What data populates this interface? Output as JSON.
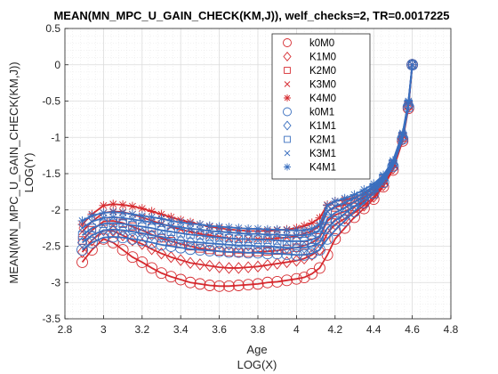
{
  "chart_data": {
    "type": "line",
    "title": "MEAN(MN_MPC_U_GAIN_CHECK(KM,J)), welf_checks=2, TR=0.0017225",
    "xlabel": [
      "Age",
      "LOG(X)"
    ],
    "ylabel": [
      "MEAN(MN_MPC_U_GAIN_CHECK(KM,J))",
      "LOG(Y)"
    ],
    "xlim": [
      2.8,
      4.8
    ],
    "ylim": [
      -3.5,
      0.5
    ],
    "xticks": [
      "2.8",
      "3",
      "3.2",
      "3.4",
      "3.6",
      "3.8",
      "4",
      "4.2",
      "4.4",
      "4.6",
      "4.8"
    ],
    "yticks": [
      "0.5",
      "0",
      "-0.5",
      "-1",
      "-1.5",
      "-2",
      "-2.5",
      "-3",
      "-3.5"
    ],
    "grid": true,
    "minor_grid": true,
    "legend_position": "top-right",
    "colors": {
      "M0": "#d62a2f",
      "M1": "#3a6fbf"
    },
    "series": [
      {
        "name": "k0M0",
        "marker": "circle",
        "color": "#d62a2f",
        "x": [
          2.89,
          2.94,
          3.0,
          3.05,
          3.1,
          3.15,
          3.2,
          3.25,
          3.3,
          3.35,
          3.4,
          3.45,
          3.5,
          3.55,
          3.6,
          3.65,
          3.7,
          3.75,
          3.8,
          3.85,
          3.9,
          3.95,
          4.0,
          4.04,
          4.08,
          4.12,
          4.16,
          4.2,
          4.25,
          4.3,
          4.35,
          4.4,
          4.45,
          4.5,
          4.55,
          4.58,
          4.6
        ],
        "y": [
          -2.72,
          -2.55,
          -2.4,
          -2.45,
          -2.55,
          -2.65,
          -2.72,
          -2.8,
          -2.87,
          -2.92,
          -2.96,
          -3.0,
          -3.02,
          -3.04,
          -3.05,
          -3.05,
          -3.04,
          -3.03,
          -3.02,
          -3.0,
          -2.99,
          -2.97,
          -2.95,
          -2.93,
          -2.88,
          -2.8,
          -2.62,
          -2.4,
          -2.25,
          -2.1,
          -1.98,
          -1.85,
          -1.68,
          -1.45,
          -1.05,
          -0.6,
          0.0
        ]
      },
      {
        "name": "K1M0",
        "marker": "diamond",
        "color": "#d62a2f",
        "x": [
          2.89,
          2.94,
          3.0,
          3.05,
          3.1,
          3.15,
          3.2,
          3.25,
          3.3,
          3.35,
          3.4,
          3.45,
          3.5,
          3.55,
          3.6,
          3.65,
          3.7,
          3.75,
          3.8,
          3.85,
          3.9,
          3.95,
          4.0,
          4.04,
          4.08,
          4.12,
          4.16,
          4.2,
          4.25,
          4.3,
          4.35,
          4.4,
          4.45,
          4.5,
          4.55,
          4.58,
          4.6
        ],
        "y": [
          -2.58,
          -2.42,
          -2.28,
          -2.29,
          -2.35,
          -2.42,
          -2.47,
          -2.54,
          -2.6,
          -2.65,
          -2.69,
          -2.73,
          -2.75,
          -2.77,
          -2.79,
          -2.8,
          -2.8,
          -2.79,
          -2.78,
          -2.76,
          -2.74,
          -2.72,
          -2.7,
          -2.67,
          -2.62,
          -2.55,
          -2.32,
          -2.2,
          -2.12,
          -2.04,
          -1.94,
          -1.82,
          -1.66,
          -1.43,
          -1.03,
          -0.58,
          0.0
        ]
      },
      {
        "name": "K2M0",
        "marker": "square",
        "color": "#d62a2f",
        "x": [
          2.89,
          2.94,
          3.0,
          3.05,
          3.1,
          3.15,
          3.2,
          3.25,
          3.3,
          3.35,
          3.4,
          3.45,
          3.5,
          3.55,
          3.6,
          3.65,
          3.7,
          3.75,
          3.8,
          3.85,
          3.9,
          3.95,
          4.0,
          4.04,
          4.08,
          4.12,
          4.16,
          4.2,
          4.25,
          4.3,
          4.35,
          4.4,
          4.45,
          4.5,
          4.55,
          4.58,
          4.6
        ],
        "y": [
          -2.42,
          -2.28,
          -2.16,
          -2.15,
          -2.18,
          -2.23,
          -2.28,
          -2.34,
          -2.39,
          -2.43,
          -2.47,
          -2.5,
          -2.53,
          -2.55,
          -2.57,
          -2.58,
          -2.59,
          -2.59,
          -2.58,
          -2.57,
          -2.56,
          -2.54,
          -2.52,
          -2.49,
          -2.45,
          -2.38,
          -2.15,
          -2.07,
          -2.02,
          -1.96,
          -1.88,
          -1.78,
          -1.63,
          -1.4,
          -1.0,
          -0.56,
          0.0
        ]
      },
      {
        "name": "K3M0",
        "marker": "x",
        "color": "#d62a2f",
        "x": [
          2.89,
          2.94,
          3.0,
          3.05,
          3.1,
          3.15,
          3.2,
          3.25,
          3.3,
          3.35,
          3.4,
          3.45,
          3.5,
          3.55,
          3.6,
          3.65,
          3.7,
          3.75,
          3.8,
          3.85,
          3.9,
          3.95,
          4.0,
          4.04,
          4.08,
          4.12,
          4.16,
          4.2,
          4.25,
          4.3,
          4.35,
          4.4,
          4.45,
          4.5,
          4.55,
          4.58,
          4.6
        ],
        "y": [
          -2.3,
          -2.16,
          -2.04,
          -2.02,
          -2.03,
          -2.06,
          -2.1,
          -2.15,
          -2.19,
          -2.23,
          -2.27,
          -2.3,
          -2.33,
          -2.35,
          -2.37,
          -2.39,
          -2.4,
          -2.4,
          -2.4,
          -2.4,
          -2.39,
          -2.38,
          -2.36,
          -2.33,
          -2.29,
          -2.22,
          -2.02,
          -1.96,
          -1.93,
          -1.89,
          -1.83,
          -1.74,
          -1.6,
          -1.38,
          -0.98,
          -0.54,
          0.0
        ]
      },
      {
        "name": "K4M0",
        "marker": "star",
        "color": "#d62a2f",
        "x": [
          2.89,
          2.94,
          3.0,
          3.05,
          3.1,
          3.15,
          3.2,
          3.25,
          3.3,
          3.35,
          3.4,
          3.45,
          3.5,
          3.55,
          3.6,
          3.65,
          3.7,
          3.75,
          3.8,
          3.85,
          3.9,
          3.95,
          4.0,
          4.04,
          4.08,
          4.12,
          4.16,
          4.2,
          4.25,
          4.3,
          4.35,
          4.4,
          4.45,
          4.5,
          4.55,
          4.58,
          4.6
        ],
        "y": [
          -2.2,
          -2.06,
          -1.94,
          -1.92,
          -1.93,
          -1.95,
          -1.98,
          -2.02,
          -2.06,
          -2.1,
          -2.14,
          -2.17,
          -2.2,
          -2.23,
          -2.25,
          -2.27,
          -2.28,
          -2.29,
          -2.29,
          -2.29,
          -2.28,
          -2.27,
          -2.25,
          -2.22,
          -2.18,
          -2.11,
          -1.93,
          -1.88,
          -1.86,
          -1.83,
          -1.78,
          -1.7,
          -1.57,
          -1.36,
          -0.96,
          -0.52,
          0.0
        ]
      },
      {
        "name": "k0M1",
        "marker": "circle",
        "color": "#3a6fbf",
        "x": [
          2.89,
          2.94,
          3.0,
          3.05,
          3.1,
          3.15,
          3.2,
          3.25,
          3.3,
          3.35,
          3.4,
          3.45,
          3.5,
          3.55,
          3.6,
          3.65,
          3.7,
          3.75,
          3.8,
          3.85,
          3.9,
          3.95,
          4.0,
          4.04,
          4.08,
          4.12,
          4.16,
          4.2,
          4.25,
          4.3,
          4.35,
          4.4,
          4.45,
          4.5,
          4.55,
          4.58,
          4.6
        ],
        "y": [
          -2.55,
          -2.45,
          -2.38,
          -2.37,
          -2.38,
          -2.4,
          -2.42,
          -2.45,
          -2.48,
          -2.5,
          -2.52,
          -2.54,
          -2.55,
          -2.56,
          -2.57,
          -2.58,
          -2.58,
          -2.59,
          -2.59,
          -2.6,
          -2.6,
          -2.61,
          -2.62,
          -2.62,
          -2.6,
          -2.55,
          -2.4,
          -2.28,
          -2.15,
          -2.02,
          -1.9,
          -1.77,
          -1.62,
          -1.4,
          -1.02,
          -0.58,
          0.0
        ]
      },
      {
        "name": "K1M1",
        "marker": "diamond",
        "color": "#3a6fbf",
        "x": [
          2.89,
          2.94,
          3.0,
          3.05,
          3.1,
          3.15,
          3.2,
          3.25,
          3.3,
          3.35,
          3.4,
          3.45,
          3.5,
          3.55,
          3.6,
          3.65,
          3.7,
          3.75,
          3.8,
          3.85,
          3.9,
          3.95,
          4.0,
          4.04,
          4.08,
          4.12,
          4.16,
          4.2,
          4.25,
          4.3,
          4.35,
          4.4,
          4.45,
          4.5,
          4.55,
          4.58,
          4.6
        ],
        "y": [
          -2.45,
          -2.35,
          -2.28,
          -2.27,
          -2.28,
          -2.3,
          -2.32,
          -2.35,
          -2.37,
          -2.4,
          -2.42,
          -2.44,
          -2.45,
          -2.46,
          -2.47,
          -2.48,
          -2.49,
          -2.49,
          -2.5,
          -2.5,
          -2.51,
          -2.52,
          -2.52,
          -2.52,
          -2.5,
          -2.45,
          -2.25,
          -2.15,
          -2.05,
          -1.95,
          -1.85,
          -1.73,
          -1.59,
          -1.38,
          -1.0,
          -0.56,
          0.0
        ]
      },
      {
        "name": "K2M1",
        "marker": "square",
        "color": "#3a6fbf",
        "x": [
          2.89,
          2.94,
          3.0,
          3.05,
          3.1,
          3.15,
          3.2,
          3.25,
          3.3,
          3.35,
          3.4,
          3.45,
          3.5,
          3.55,
          3.6,
          3.65,
          3.7,
          3.75,
          3.8,
          3.85,
          3.9,
          3.95,
          4.0,
          4.04,
          4.08,
          4.12,
          4.16,
          4.2,
          4.25,
          4.3,
          4.35,
          4.4,
          4.45,
          4.5,
          4.55,
          4.58,
          4.6
        ],
        "y": [
          -2.35,
          -2.25,
          -2.19,
          -2.18,
          -2.19,
          -2.21,
          -2.23,
          -2.25,
          -2.28,
          -2.3,
          -2.32,
          -2.34,
          -2.35,
          -2.37,
          -2.38,
          -2.39,
          -2.4,
          -2.4,
          -2.41,
          -2.41,
          -2.42,
          -2.43,
          -2.43,
          -2.43,
          -2.41,
          -2.36,
          -2.12,
          -2.04,
          -1.97,
          -1.89,
          -1.8,
          -1.7,
          -1.56,
          -1.36,
          -0.98,
          -0.54,
          0.0
        ]
      },
      {
        "name": "K3M1",
        "marker": "x",
        "color": "#3a6fbf",
        "x": [
          2.89,
          2.94,
          3.0,
          3.05,
          3.1,
          3.15,
          3.2,
          3.25,
          3.3,
          3.35,
          3.4,
          3.45,
          3.5,
          3.55,
          3.6,
          3.65,
          3.7,
          3.75,
          3.8,
          3.85,
          3.9,
          3.95,
          4.0,
          4.04,
          4.08,
          4.12,
          4.16,
          4.2,
          4.25,
          4.3,
          4.35,
          4.4,
          4.45,
          4.5,
          4.55,
          4.58,
          4.6
        ],
        "y": [
          -2.25,
          -2.16,
          -2.11,
          -2.1,
          -2.11,
          -2.13,
          -2.15,
          -2.17,
          -2.2,
          -2.22,
          -2.24,
          -2.26,
          -2.27,
          -2.29,
          -2.3,
          -2.31,
          -2.32,
          -2.33,
          -2.33,
          -2.34,
          -2.34,
          -2.35,
          -2.35,
          -2.35,
          -2.33,
          -2.28,
          -2.02,
          -1.95,
          -1.9,
          -1.84,
          -1.76,
          -1.67,
          -1.54,
          -1.34,
          -0.96,
          -0.52,
          0.0
        ]
      },
      {
        "name": "K4M1",
        "marker": "star",
        "color": "#3a6fbf",
        "x": [
          2.89,
          2.94,
          3.0,
          3.05,
          3.1,
          3.15,
          3.2,
          3.25,
          3.3,
          3.35,
          3.4,
          3.45,
          3.5,
          3.55,
          3.6,
          3.65,
          3.7,
          3.75,
          3.8,
          3.85,
          3.9,
          3.95,
          4.0,
          4.04,
          4.08,
          4.12,
          4.16,
          4.2,
          4.25,
          4.3,
          4.35,
          4.4,
          4.45,
          4.5,
          4.55,
          4.58,
          4.6
        ],
        "y": [
          -2.15,
          -2.08,
          -2.04,
          -2.03,
          -2.04,
          -2.06,
          -2.08,
          -2.1,
          -2.12,
          -2.15,
          -2.17,
          -2.19,
          -2.2,
          -2.22,
          -2.23,
          -2.24,
          -2.25,
          -2.26,
          -2.26,
          -2.27,
          -2.27,
          -2.28,
          -2.28,
          -2.28,
          -2.26,
          -2.2,
          -1.94,
          -1.88,
          -1.84,
          -1.79,
          -1.72,
          -1.64,
          -1.52,
          -1.32,
          -0.94,
          -0.5,
          0.0
        ]
      }
    ]
  }
}
